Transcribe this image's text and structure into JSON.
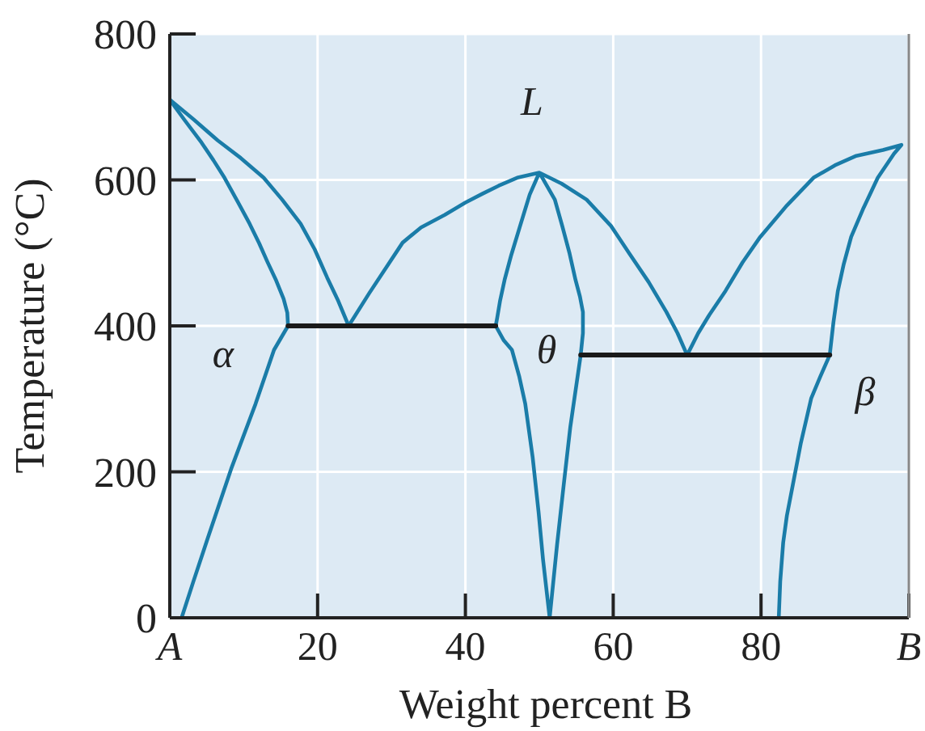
{
  "chart_data": {
    "type": "line",
    "xlabel": "Weight percent B",
    "ylabel": "Temperature (°C)",
    "xlim": [
      0,
      100
    ],
    "ylim": [
      0,
      800
    ],
    "xticks": [
      {
        "value": 0,
        "label": "A"
      },
      20,
      40,
      60,
      80,
      {
        "value": 100,
        "label": "B"
      }
    ],
    "yticks": [
      0,
      200,
      400,
      600,
      800
    ],
    "grid": true,
    "series": [
      {
        "color": "#1a7ca8",
        "x": [
          0,
          3.2,
          6.5,
          9.6,
          12.7,
          15.2,
          17.7,
          19.6,
          21.3,
          22.8,
          24.2,
          27,
          31.5,
          34,
          37.2,
          40,
          42.3,
          44.5,
          47,
          50,
          48.7,
          47.4,
          46.2,
          45.3,
          44.7,
          44.3,
          44.1,
          45.2,
          46.3,
          47.3,
          48.1,
          49.1,
          49.9,
          50.5,
          51.4,
          52.4,
          53.3,
          54.2,
          55.6,
          55.9,
          55.9,
          55.5,
          54.9,
          54.1,
          53.1,
          52.1,
          50,
          53,
          56.4,
          59.7,
          62.2,
          64.8,
          67.2,
          68.7,
          70,
          71.5,
          73,
          75.2,
          77.5,
          79.9,
          83.5,
          87.1,
          90,
          92.9,
          96.5,
          99,
          98,
          95.8,
          93.8,
          92.2,
          91.2,
          90.4,
          89.8,
          89.3,
          88,
          86.8,
          85.4,
          84.3,
          83.5,
          83,
          82.6,
          82.4
        ],
        "values": [
          710,
          683,
          654,
          630,
          603,
          573,
          540,
          505,
          466,
          434,
          400,
          445,
          514,
          535,
          552,
          569,
          581,
          592,
          603,
          610,
          580,
          537,
          497,
          463,
          435,
          411,
          400,
          380,
          367,
          330,
          293,
          220,
          145,
          80,
          0,
          100,
          182,
          262,
          360,
          390,
          419,
          440,
          463,
          499,
          537,
          573,
          610,
          595,
          573,
          537,
          499,
          460,
          419,
          390,
          360,
          390,
          415,
          448,
          487,
          522,
          565,
          603,
          620,
          633,
          641,
          648,
          636,
          603,
          560,
          522,
          485,
          448,
          405,
          360,
          330,
          301,
          240,
          182,
          140,
          103,
          50,
          0
        ]
      },
      {
        "color": "#1a7ca8",
        "x": [
          0,
          2,
          4.3,
          5.9,
          7.4,
          9.2,
          10.8,
          12.1,
          13.2,
          14.4,
          15.4,
          15.9,
          16,
          14.1,
          11.6,
          8.3,
          5.1,
          3.2,
          1.6
        ],
        "values": [
          710,
          682,
          651,
          627,
          603,
          570,
          540,
          513,
          488,
          462,
          437,
          418,
          400,
          367,
          293,
          204,
          108,
          50,
          0
        ]
      },
      {
        "color": "#1a1a1a",
        "x": [
          16,
          44.1
        ],
        "values": [
          400,
          400
        ]
      },
      {
        "color": "#1a1a1a",
        "x": [
          55.6,
          89.3
        ],
        "values": [
          360,
          360
        ]
      }
    ],
    "annotations": [
      "L",
      "α",
      "θ",
      "β"
    ]
  }
}
